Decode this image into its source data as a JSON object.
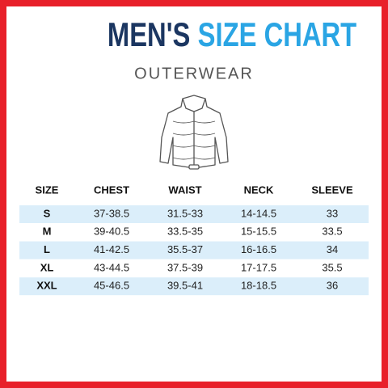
{
  "header": {
    "title_part1": "MEN'S",
    "title_part2": "SIZE CHART",
    "subtitle": "OUTERWEAR"
  },
  "table": {
    "columns": [
      "SIZE",
      "CHEST",
      "WAIST",
      "NECK",
      "SLEEVE"
    ],
    "rows": [
      [
        "S",
        "37-38.5",
        "31.5-33",
        "14-14.5",
        "33"
      ],
      [
        "M",
        "39-40.5",
        "33.5-35",
        "15-15.5",
        "33.5"
      ],
      [
        "L",
        "41-42.5",
        "35.5-37",
        "16-16.5",
        "34"
      ],
      [
        "XL",
        "43-44.5",
        "37.5-39",
        "17-17.5",
        "35.5"
      ],
      [
        "XXL",
        "45-46.5",
        "39.5-41",
        "18-18.5",
        "36"
      ]
    ]
  }
}
